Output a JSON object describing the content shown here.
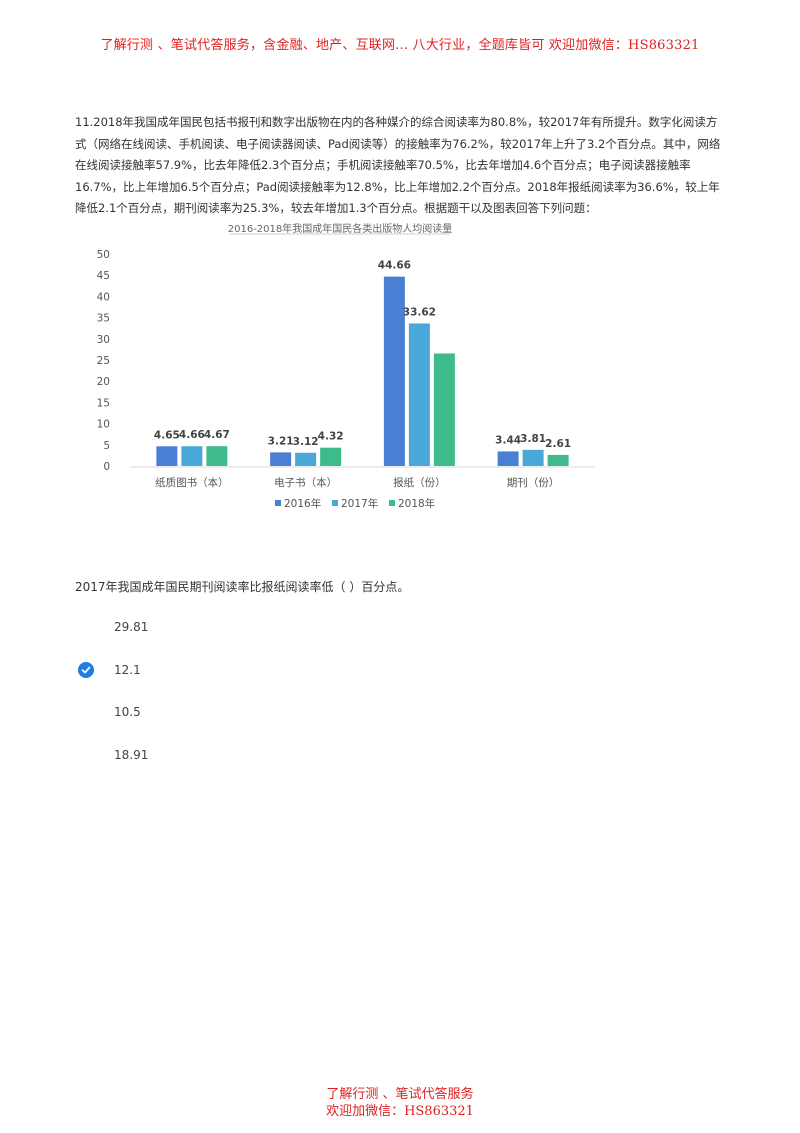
{
  "watermark": {
    "top": "了解行测 、笔试代答服务，含金融、地产、互联网... 八大行业，全题库皆可 欢迎加微信：HS863321",
    "bottom_line1": "了解行测 、笔试代答服务",
    "bottom_line2": "欢迎加微信：HS863321"
  },
  "question": {
    "text": "11.2018年我国成年国民包括书报刊和数字出版物在内的各种媒介的综合阅读率为80.8%，较2017年有所提升。数字化阅读方式（网络在线阅读、手机阅读、电子阅读器阅读、Pad阅读等）的接触率为76.2%，较2017年上升了3.2个百分点。其中，网络在线阅读接触率57.9%，比去年降低2.3个百分点；手机阅读接触率70.5%，比去年增加4.6个百分点；电子阅读器接触率16.7%，比上年增加6.5个百分点；Pad阅读接触率为12.8%，比上年增加2.2个百分点。2018年报纸阅读率为36.6%，较上年降低2.1个百分点，期刊阅读率为25.3%，较去年增加1.3个百分点。根据题干以及图表回答下列问题："
  },
  "chart_data": {
    "type": "bar",
    "title": "2016-2018年我国成年国民各类出版物人均阅读量",
    "xlabel": "",
    "ylabel": "",
    "ylim": [
      0,
      50
    ],
    "yticks": [
      0,
      5,
      10,
      15,
      20,
      25,
      30,
      35,
      40,
      45,
      50
    ],
    "grid": false,
    "legend_position": "bottom",
    "categories": [
      "纸质图书（本）",
      "电子书（本）",
      "报纸（份）",
      "期刊（份）"
    ],
    "series": [
      {
        "name": "2016年",
        "color": "#4a7fd4",
        "values": [
          4.65,
          3.21,
          44.66,
          3.44
        ],
        "labels": [
          "4.65",
          "3.21",
          "44.66",
          "3.44"
        ]
      },
      {
        "name": "2017年",
        "color": "#4aa8d8",
        "values": [
          4.66,
          3.12,
          33.62,
          3.81
        ],
        "labels": [
          "4.66",
          "3.12",
          "33.62",
          "3.81"
        ]
      },
      {
        "name": "2018年",
        "color": "#3dbb8a",
        "values": [
          4.67,
          4.32,
          26.54,
          2.61
        ],
        "labels": [
          "4.67",
          "4.32",
          "",
          "2.61"
        ]
      }
    ]
  },
  "sub_question": {
    "text": "2017年我国成年国民期刊阅读率比报纸阅读率低（ ）百分点。"
  },
  "options": [
    {
      "label": "29.81",
      "selected": false
    },
    {
      "label": "12.1",
      "selected": true
    },
    {
      "label": "10.5",
      "selected": false
    },
    {
      "label": "18.91",
      "selected": false
    }
  ],
  "icons": {
    "selected": "check-circle-icon"
  }
}
